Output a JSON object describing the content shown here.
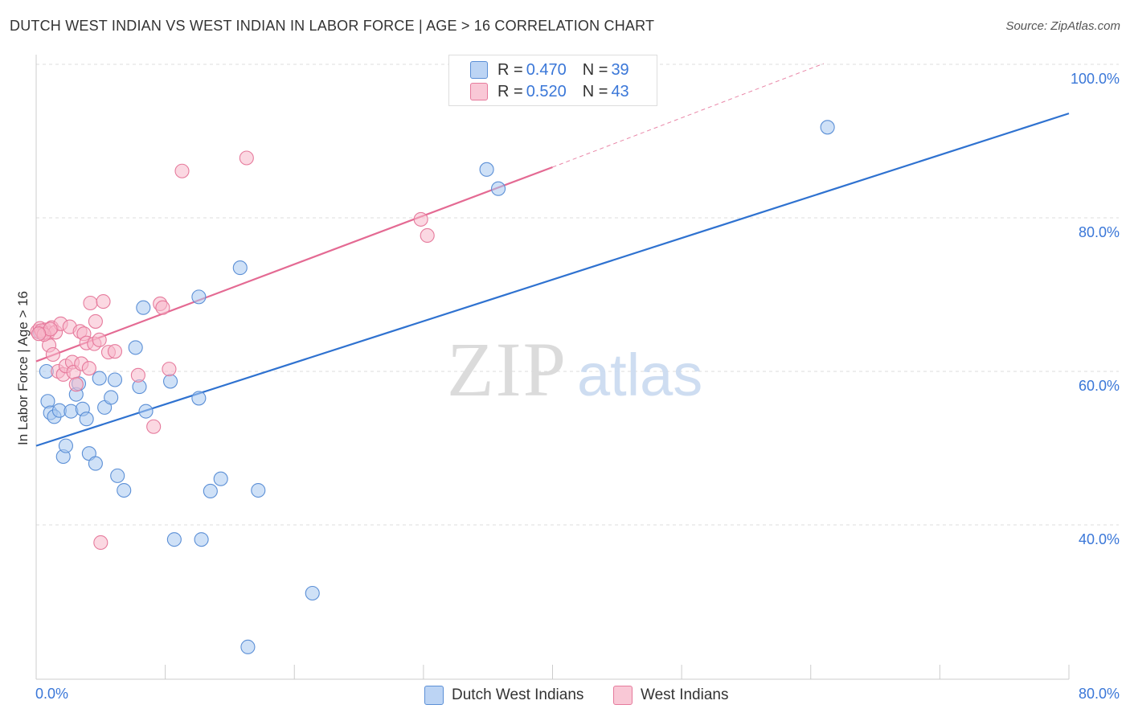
{
  "header": {
    "title": "DUTCH WEST INDIAN VS WEST INDIAN IN LABOR FORCE | AGE > 16 CORRELATION CHART",
    "source": "Source: ZipAtlas.com"
  },
  "legend": {
    "series1": {
      "r_label": "R = ",
      "r_value": "0.470",
      "n_label": "N = ",
      "n_value": "39"
    },
    "series2": {
      "r_label": "R = ",
      "r_value": "0.520",
      "n_label": "N = ",
      "n_value": "43"
    }
  },
  "bottom_legend": [
    "Dutch West Indians",
    "West Indians"
  ],
  "watermark": {
    "zip": "ZIP",
    "atlas": "atlas"
  },
  "colors": {
    "blue_fill": "#a8c8f0",
    "blue_stroke": "#5b8fd6",
    "blue_line": "#2f72d0",
    "pink_fill": "#f7b8cb",
    "pink_stroke": "#e67a9c",
    "pink_line": "#e46a93",
    "grid": "#dddddd",
    "tick_text": "#3a77d8"
  },
  "chart_data": {
    "type": "scatter",
    "title": "DUTCH WEST INDIAN VS WEST INDIAN IN LABOR FORCE | AGE > 16 CORRELATION CHART",
    "xlabel": "",
    "ylabel": "In Labor Force | Age > 16",
    "xlim": [
      0,
      80
    ],
    "ylim": [
      20,
      104
    ],
    "x_tick_labels": [
      "0.0%",
      "80.0%"
    ],
    "y_ticks": [
      40,
      60,
      80,
      100
    ],
    "y_tick_labels": [
      "40.0%",
      "60.0%",
      "80.0%",
      "100.0%"
    ],
    "grid": true,
    "legend_position": "top-center",
    "series": [
      {
        "name": "Dutch West Indians",
        "r": 0.47,
        "n": 39,
        "trend": {
          "x0": 0,
          "y0": 50.3,
          "x1": 80,
          "y1": 93.6
        },
        "points": [
          [
            0.8,
            60.0
          ],
          [
            0.9,
            56.1
          ],
          [
            1.1,
            54.6
          ],
          [
            1.4,
            54.1
          ],
          [
            1.8,
            54.9
          ],
          [
            2.1,
            48.9
          ],
          [
            2.3,
            50.3
          ],
          [
            2.7,
            54.8
          ],
          [
            3.1,
            57.0
          ],
          [
            3.3,
            58.4
          ],
          [
            3.6,
            55.1
          ],
          [
            3.9,
            53.8
          ],
          [
            4.1,
            49.3
          ],
          [
            4.6,
            48.0
          ],
          [
            4.9,
            59.1
          ],
          [
            5.3,
            55.3
          ],
          [
            5.8,
            56.6
          ],
          [
            6.1,
            58.9
          ],
          [
            6.3,
            46.4
          ],
          [
            6.8,
            44.5
          ],
          [
            7.7,
            63.1
          ],
          [
            8.0,
            58.0
          ],
          [
            8.3,
            68.3
          ],
          [
            8.5,
            54.8
          ],
          [
            10.4,
            58.7
          ],
          [
            10.7,
            38.1
          ],
          [
            12.6,
            69.7
          ],
          [
            12.6,
            56.5
          ],
          [
            12.8,
            38.1
          ],
          [
            13.5,
            44.4
          ],
          [
            14.3,
            46.0
          ],
          [
            15.8,
            73.5
          ],
          [
            16.4,
            24.1
          ],
          [
            17.2,
            44.5
          ],
          [
            21.4,
            31.1
          ],
          [
            34.9,
            86.3
          ],
          [
            35.8,
            83.8
          ],
          [
            61.3,
            91.8
          ],
          [
            0.3,
            65.1
          ]
        ]
      },
      {
        "name": "West Indians",
        "r": 0.52,
        "n": 43,
        "trend": {
          "x0": 0,
          "y0": 61.3,
          "x1": 40,
          "y1": 86.6,
          "dash_to_x": 61,
          "dash_to_y": 100.1
        },
        "points": [
          [
            0.1,
            65.2
          ],
          [
            0.3,
            65.6
          ],
          [
            0.5,
            65.0
          ],
          [
            0.7,
            65.4
          ],
          [
            0.9,
            65.0
          ],
          [
            1.0,
            63.4
          ],
          [
            1.2,
            65.7
          ],
          [
            1.3,
            62.2
          ],
          [
            1.5,
            65.1
          ],
          [
            1.7,
            60.0
          ],
          [
            1.9,
            66.2
          ],
          [
            2.1,
            59.6
          ],
          [
            2.3,
            60.7
          ],
          [
            2.6,
            65.8
          ],
          [
            2.8,
            61.2
          ],
          [
            2.9,
            59.9
          ],
          [
            3.1,
            58.3
          ],
          [
            3.4,
            65.2
          ],
          [
            3.5,
            61.0
          ],
          [
            3.7,
            64.9
          ],
          [
            3.9,
            63.7
          ],
          [
            4.1,
            60.4
          ],
          [
            4.2,
            68.9
          ],
          [
            4.5,
            63.6
          ],
          [
            4.6,
            66.5
          ],
          [
            4.9,
            64.1
          ],
          [
            5.0,
            37.7
          ],
          [
            5.2,
            69.1
          ],
          [
            5.6,
            62.5
          ],
          [
            6.1,
            62.6
          ],
          [
            7.9,
            59.5
          ],
          [
            9.1,
            52.8
          ],
          [
            9.6,
            68.8
          ],
          [
            9.8,
            68.3
          ],
          [
            10.3,
            60.3
          ],
          [
            11.3,
            86.1
          ],
          [
            16.3,
            87.8
          ],
          [
            29.8,
            79.8
          ],
          [
            30.3,
            77.7
          ],
          [
            0.4,
            65.3
          ],
          [
            0.6,
            64.8
          ],
          [
            1.1,
            65.5
          ],
          [
            0.2,
            64.9
          ]
        ]
      }
    ]
  }
}
